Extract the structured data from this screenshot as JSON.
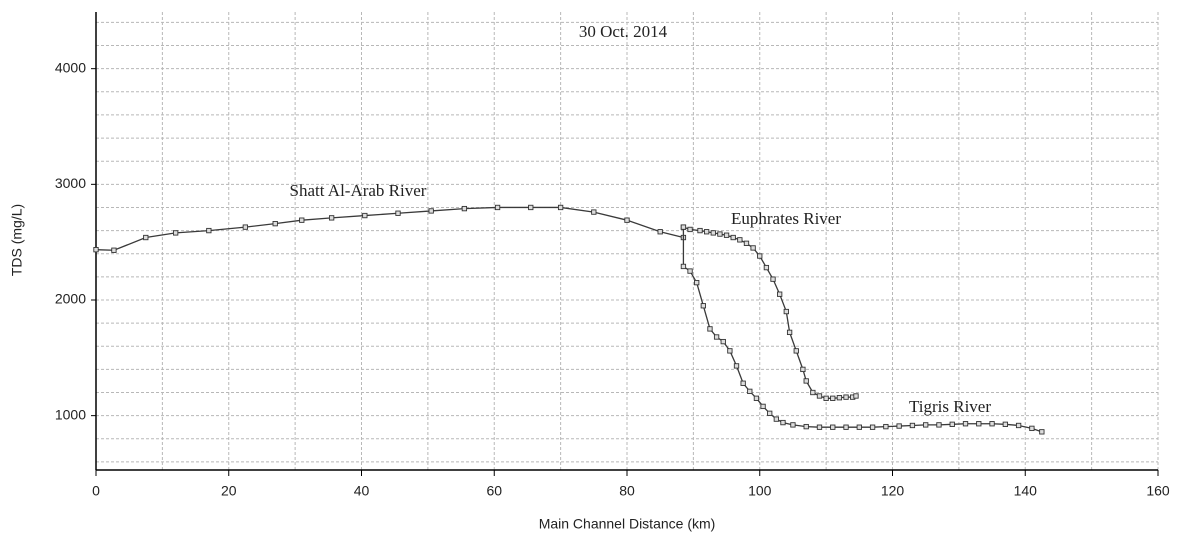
{
  "chart_data": {
    "type": "line",
    "title": "30 Oct. 2014",
    "x_label": "Main Channel Distance (km)",
    "y_label": "TDS (mg/L)",
    "annotations": [
      "Shatt Al-Arab River",
      "Euphrates River",
      "Tigris River"
    ],
    "xlim": [
      0,
      160
    ],
    "ylim": [
      530,
      4490
    ],
    "xticks": [
      0,
      20,
      40,
      60,
      80,
      100,
      120,
      140,
      160
    ],
    "yticks": [
      1000,
      2000,
      3000,
      4000
    ],
    "xminor": [
      10,
      30,
      50,
      70,
      90,
      110,
      130,
      150
    ],
    "yminor": [
      600,
      800,
      1200,
      1400,
      1600,
      1800,
      2200,
      2400,
      2600,
      2800,
      3200,
      3400,
      3600,
      3800,
      4200,
      4400
    ],
    "grid": true,
    "color": "#3a3a3a",
    "series": [
      {
        "x": [
          0,
          2.7,
          7.5,
          12,
          17,
          22.5,
          27,
          31,
          35.5,
          40.5,
          45.5,
          50.5,
          55.5,
          60.5,
          65.5,
          70,
          75,
          80,
          85,
          88.5
        ],
        "values": [
          2435,
          2430,
          2540,
          2580,
          2600,
          2630,
          2660,
          2690,
          2710,
          2730,
          2750,
          2770,
          2790,
          2800,
          2800,
          2800,
          2760,
          2690,
          2590,
          2540
        ]
      },
      {
        "x": [
          88.5,
          89.5,
          91,
          92,
          93,
          94,
          95,
          96,
          97,
          98,
          99,
          100,
          101,
          102,
          103,
          104,
          104.5,
          105.5,
          106.5,
          107,
          108,
          109,
          110,
          111,
          112,
          113,
          114,
          114.5
        ],
        "values": [
          2630,
          2610,
          2600,
          2590,
          2580,
          2570,
          2560,
          2540,
          2520,
          2490,
          2450,
          2380,
          2280,
          2180,
          2050,
          1900,
          1720,
          1560,
          1400,
          1300,
          1200,
          1170,
          1150,
          1150,
          1155,
          1160,
          1160,
          1170
        ]
      },
      {
        "x": [
          88.5,
          88.5,
          89.5,
          90.5,
          91.5,
          92.5,
          93.5,
          94.5,
          95.5,
          96.5,
          97.5,
          98.5,
          99.5,
          100.5,
          101.5,
          102.5,
          103.5,
          105,
          107,
          109,
          111,
          113,
          115,
          117,
          119,
          121,
          123,
          125,
          127,
          129,
          131,
          133,
          135,
          137,
          139,
          141,
          142.5
        ],
        "values": [
          2630,
          2290,
          2250,
          2150,
          1950,
          1750,
          1680,
          1640,
          1560,
          1430,
          1280,
          1210,
          1150,
          1080,
          1020,
          970,
          940,
          920,
          905,
          900,
          900,
          900,
          900,
          900,
          905,
          910,
          915,
          920,
          920,
          925,
          930,
          930,
          930,
          925,
          915,
          890,
          860
        ]
      }
    ]
  }
}
